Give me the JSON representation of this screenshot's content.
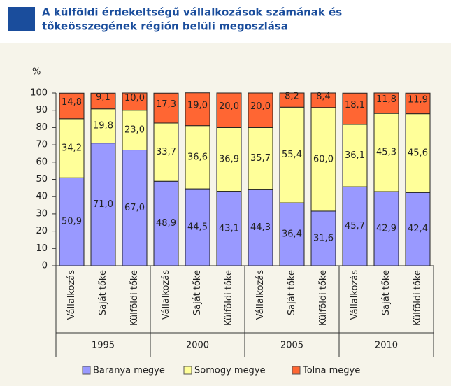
{
  "chart_data": {
    "type": "stacked-bar",
    "title": [
      "A külföldi érdekeltségű vállalkozások számának és",
      "tőkeösszegének régión belüli megoszlása"
    ],
    "y_label": "%",
    "categories": [
      "Vállalkozás",
      "Saját tőke",
      "Külföldi tőke",
      "Vállalkozás",
      "Saját tőke",
      "Külföldi tőke",
      "Vállalkozás",
      "Saját tőke",
      "Külföldi tőke",
      "Vállalkozás",
      "Saját tőke",
      "Külföldi tőke"
    ],
    "groups": [
      "1995",
      "2000",
      "2005",
      "2010"
    ],
    "series": [
      {
        "name": "Baranya megye",
        "color": "#9999ff",
        "values": [
          50.9,
          71.0,
          67.0,
          48.9,
          44.5,
          43.1,
          44.3,
          36.4,
          31.6,
          45.7,
          42.9,
          42.4
        ],
        "value_labels": [
          "50,9",
          "71,0",
          "67,0",
          "48,9",
          "44,5",
          "43,1",
          "44,3",
          "36,4",
          "31,6",
          "45,7",
          "42,9",
          "42,4"
        ]
      },
      {
        "name": "Somogy megye",
        "color": "#ffff99",
        "values": [
          34.2,
          19.8,
          23.0,
          33.7,
          36.6,
          36.9,
          35.7,
          55.4,
          60.0,
          36.1,
          45.3,
          45.6
        ],
        "value_labels": [
          "34,2",
          "19,8",
          "23,0",
          "33,7",
          "36,6",
          "36,9",
          "35,7",
          "55,4",
          "60,0",
          "36,1",
          "45,3",
          "45,6"
        ]
      },
      {
        "name": "Tolna megye",
        "color": "#ff6633",
        "values": [
          14.8,
          9.1,
          10.0,
          17.3,
          19.0,
          20.0,
          20.0,
          8.2,
          8.4,
          18.1,
          11.8,
          11.9
        ],
        "value_labels": [
          "14,8",
          "9,1",
          "10,0",
          "17,3",
          "19,0",
          "20,0",
          "20,0",
          "8,2",
          "8,4",
          "18,1",
          "11,8",
          "11,9"
        ]
      }
    ],
    "ylim": [
      0,
      100
    ],
    "yticks": [
      0,
      10,
      20,
      30,
      40,
      50,
      60,
      70,
      80,
      90,
      100
    ]
  }
}
